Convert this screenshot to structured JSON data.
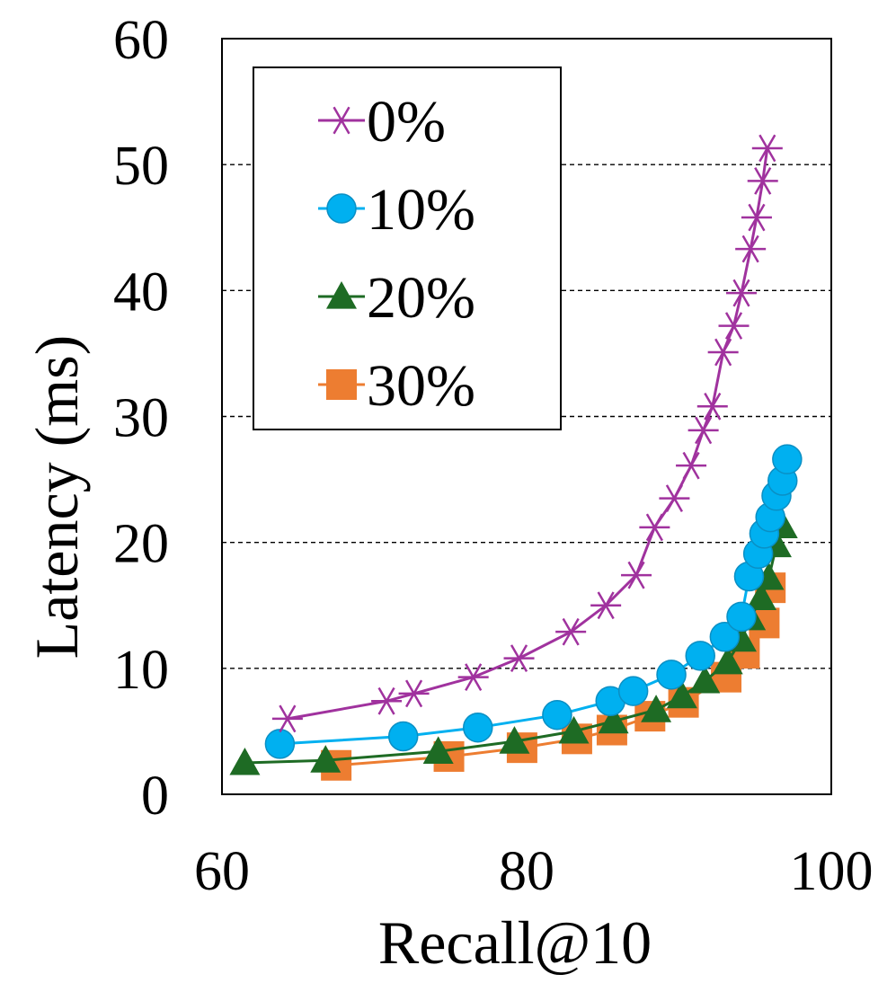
{
  "chart_data": {
    "type": "line",
    "title": "",
    "xlabel": "Recall@10",
    "ylabel": "Latency (ms)",
    "xlim": [
      60,
      100
    ],
    "ylim": [
      0,
      60
    ],
    "x_ticks": [
      "60",
      "80",
      "100"
    ],
    "y_ticks": [
      "0",
      "10",
      "20",
      "30",
      "40",
      "50",
      "60"
    ],
    "grid": "horizontal dashed",
    "legend_position": "top-left",
    "series": [
      {
        "name": "0%",
        "marker": "star",
        "color": "#A0329E",
        "points": [
          [
            64.3,
            6.0
          ],
          [
            70.8,
            7.4
          ],
          [
            72.6,
            8.0
          ],
          [
            76.5,
            9.3
          ],
          [
            79.5,
            10.8
          ],
          [
            82.9,
            12.9
          ],
          [
            85.2,
            15.0
          ],
          [
            87.2,
            17.4
          ],
          [
            88.4,
            21.2
          ],
          [
            89.7,
            23.5
          ],
          [
            90.8,
            26.1
          ],
          [
            91.6,
            28.9
          ],
          [
            92.2,
            30.8
          ],
          [
            92.9,
            35.1
          ],
          [
            93.6,
            37.2
          ],
          [
            94.1,
            39.8
          ],
          [
            94.7,
            43.3
          ],
          [
            95.1,
            45.8
          ],
          [
            95.5,
            48.7
          ],
          [
            95.8,
            51.3
          ]
        ]
      },
      {
        "name": "10%",
        "marker": "circle",
        "color": "#00B0F0",
        "points": [
          [
            63.8,
            4.0
          ],
          [
            71.9,
            4.6
          ],
          [
            76.8,
            5.3
          ],
          [
            82.0,
            6.3
          ],
          [
            85.5,
            7.4
          ],
          [
            87.0,
            8.2
          ],
          [
            89.5,
            9.5
          ],
          [
            91.4,
            11.0
          ],
          [
            93.0,
            12.5
          ],
          [
            94.1,
            14.1
          ],
          [
            94.6,
            17.3
          ],
          [
            95.2,
            19.1
          ],
          [
            95.6,
            20.7
          ],
          [
            96.0,
            22.0
          ],
          [
            96.4,
            23.7
          ],
          [
            96.8,
            24.9
          ],
          [
            97.1,
            26.6
          ]
        ]
      },
      {
        "name": "20%",
        "marker": "triangle",
        "color": "#1E6B24",
        "points": [
          [
            61.5,
            2.5
          ],
          [
            66.8,
            2.7
          ],
          [
            74.2,
            3.4
          ],
          [
            79.2,
            4.2
          ],
          [
            83.1,
            5.0
          ],
          [
            85.7,
            5.8
          ],
          [
            88.5,
            6.7
          ],
          [
            90.2,
            7.8
          ],
          [
            91.7,
            9.0
          ],
          [
            93.2,
            10.5
          ],
          [
            94.1,
            12.3
          ],
          [
            94.7,
            14.0
          ],
          [
            95.4,
            15.6
          ],
          [
            95.9,
            17.2
          ],
          [
            96.4,
            19.8
          ],
          [
            96.8,
            21.3
          ]
        ]
      },
      {
        "name": "30%",
        "marker": "square",
        "color": "#ED7D31",
        "points": [
          [
            67.5,
            2.3
          ],
          [
            74.9,
            3.0
          ],
          [
            79.7,
            3.7
          ],
          [
            83.3,
            4.4
          ],
          [
            85.6,
            5.1
          ],
          [
            88.1,
            6.2
          ],
          [
            90.3,
            7.3
          ],
          [
            93.1,
            9.3
          ],
          [
            94.3,
            11.2
          ],
          [
            95.6,
            13.6
          ],
          [
            96.0,
            16.4
          ]
        ]
      }
    ]
  }
}
